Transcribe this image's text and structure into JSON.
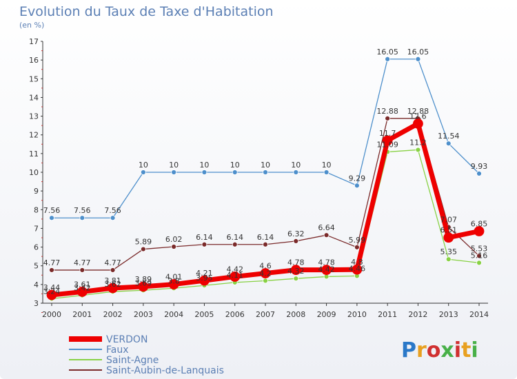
{
  "chart_data": {
    "type": "line",
    "title": "Evolution du Taux de Taxe d'Habitation",
    "subtitle": "(en %)",
    "x": [
      "2000",
      "2001",
      "2002",
      "2003",
      "2004",
      "2005",
      "2006",
      "2007",
      "2008",
      "2009",
      "2010",
      "2011",
      "2012",
      "2013",
      "2014"
    ],
    "ylim": [
      3,
      17
    ],
    "yticks": [
      3,
      4,
      5,
      6,
      7,
      8,
      9,
      10,
      11,
      12,
      13,
      14,
      15,
      16,
      17
    ],
    "grid": false,
    "legend_placement": "bottom-left",
    "series": [
      {
        "name": "VERDON",
        "color": "#ee0000",
        "values": [
          3.44,
          3.61,
          3.81,
          3.89,
          4.01,
          4.21,
          4.42,
          4.6,
          4.78,
          4.78,
          4.8,
          11.7,
          12.6,
          6.51,
          6.85
        ],
        "labels": [
          "3.44",
          "3.61",
          "3.81",
          "3.89",
          "4.01",
          "4.21",
          "4.42",
          "4.6",
          "4.78",
          "4.78",
          "4.8",
          "11.7",
          "12.6",
          "6.51",
          "6.85"
        ]
      },
      {
        "name": "Faux",
        "color": "#4d8fcb",
        "values": [
          7.56,
          7.56,
          7.56,
          10,
          10,
          10,
          10,
          10,
          10,
          10,
          9.29,
          16.05,
          16.05,
          11.54,
          9.93
        ],
        "labels": [
          "7.56",
          "7.56",
          "7.56",
          "10",
          "10",
          "10",
          "10",
          "10",
          "10",
          "10",
          "9.29",
          "16.05",
          "16.05",
          "11.54",
          "9.93"
        ]
      },
      {
        "name": "Saint-Agne",
        "color": "#88d144",
        "values": [
          3.24,
          3.42,
          3.62,
          3.69,
          3.8,
          3.95,
          4.11,
          4.2,
          4.32,
          4.42,
          4.46,
          11.09,
          11.2,
          5.35,
          5.16
        ],
        "labels": [
          "3.24",
          "3.42",
          "3.62",
          "3.69",
          "3.8",
          "3.95",
          "4.11",
          "4.2",
          "4.32",
          "4.42",
          "4.46",
          "11.09",
          "11.2",
          "5.35",
          "5.16"
        ]
      },
      {
        "name": "Saint-Aubin-de-Lanquais",
        "color": "#7a2a2a",
        "values": [
          4.77,
          4.77,
          4.77,
          5.89,
          6.02,
          6.14,
          6.14,
          6.14,
          6.32,
          6.64,
          5.99,
          12.88,
          12.88,
          7.07,
          5.53
        ],
        "labels": [
          "4.77",
          "4.77",
          "4.77",
          "5.89",
          "6.02",
          "6.14",
          "6.14",
          "6.14",
          "6.32",
          "6.64",
          "5.99",
          "12.88",
          "12.88",
          "7.07",
          "5.53"
        ]
      }
    ]
  },
  "branding": {
    "logo_text": "Proxiti"
  }
}
